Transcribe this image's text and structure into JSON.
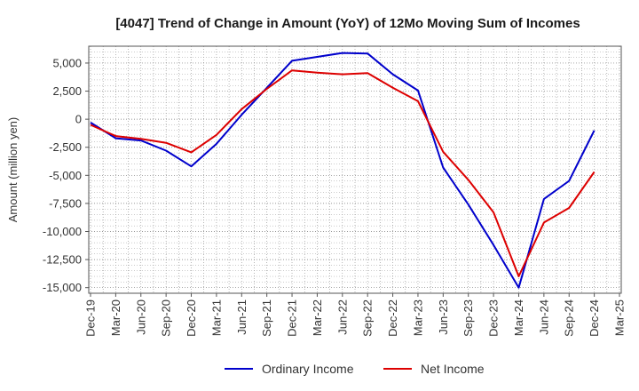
{
  "chart_data": {
    "type": "line",
    "title": "[4047]  Trend of Change in Amount (YoY) of 12Mo Moving Sum of Incomes",
    "xlabel": "",
    "ylabel": "Amount (million yen)",
    "ylim": [
      -15500,
      6500
    ],
    "yticks": [
      5000,
      2500,
      0,
      -2500,
      -5000,
      -7500,
      -10000,
      -12500,
      -15000
    ],
    "ytick_labels": [
      "5,000",
      "2,500",
      "0",
      "-2,500",
      "-5,000",
      "-7,500",
      "-10,000",
      "-12,500",
      "-15,000"
    ],
    "grid": true,
    "legend_position": "bottom",
    "categories": [
      "Dec-19",
      "Mar-20",
      "Jun-20",
      "Sep-20",
      "Dec-20",
      "Mar-21",
      "Jun-21",
      "Sep-21",
      "Dec-21",
      "Mar-22",
      "Jun-22",
      "Sep-22",
      "Dec-22",
      "Mar-23",
      "Jun-23",
      "Sep-23",
      "Dec-23",
      "Mar-24",
      "Jun-24",
      "Sep-24",
      "Dec-24",
      "Mar-25"
    ],
    "series": [
      {
        "name": "Ordinary Income",
        "color": "#0000cc",
        "values": [
          -300,
          -1700,
          -1900,
          -2800,
          -4200,
          -2200,
          400,
          2800,
          5200,
          5550,
          5900,
          5850,
          4000,
          2550,
          -4300,
          -7600,
          -11200,
          -15000,
          -7100,
          -5500,
          -1000,
          null
        ]
      },
      {
        "name": "Net Income",
        "color": "#dd0000",
        "values": [
          -500,
          -1500,
          -1750,
          -2100,
          -2950,
          -1400,
          900,
          2700,
          4350,
          4150,
          4000,
          4100,
          2800,
          1600,
          -2900,
          -5400,
          -8300,
          -14000,
          -9200,
          -7900,
          -4700,
          null
        ]
      }
    ]
  }
}
